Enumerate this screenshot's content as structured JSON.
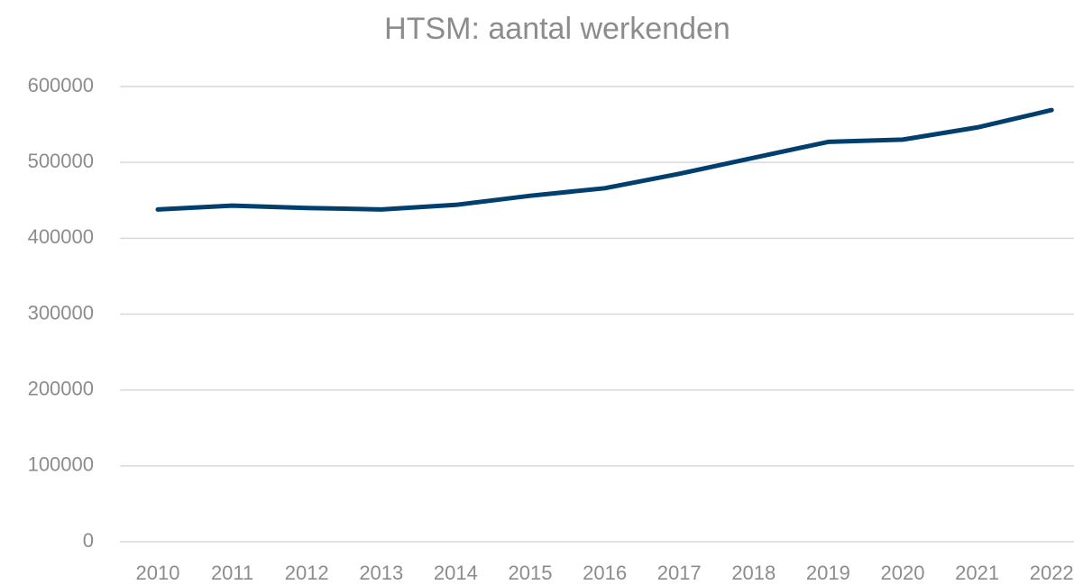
{
  "chart_data": {
    "type": "line",
    "title": "HTSM: aantal werkenden",
    "categories": [
      "2010",
      "2011",
      "2012",
      "2013",
      "2014",
      "2015",
      "2016",
      "2017",
      "2018",
      "2019",
      "2020",
      "2021",
      "2022"
    ],
    "series": [
      {
        "name": "aantal werkenden",
        "color": "#003f6e",
        "values": [
          438000,
          443000,
          440000,
          438000,
          444000,
          456000,
          466000,
          485000,
          506000,
          527000,
          530000,
          546000,
          569000
        ]
      }
    ],
    "ylim": [
      0,
      600000
    ],
    "yticks": [
      0,
      100000,
      200000,
      300000,
      400000,
      500000,
      600000
    ],
    "grid": true
  }
}
